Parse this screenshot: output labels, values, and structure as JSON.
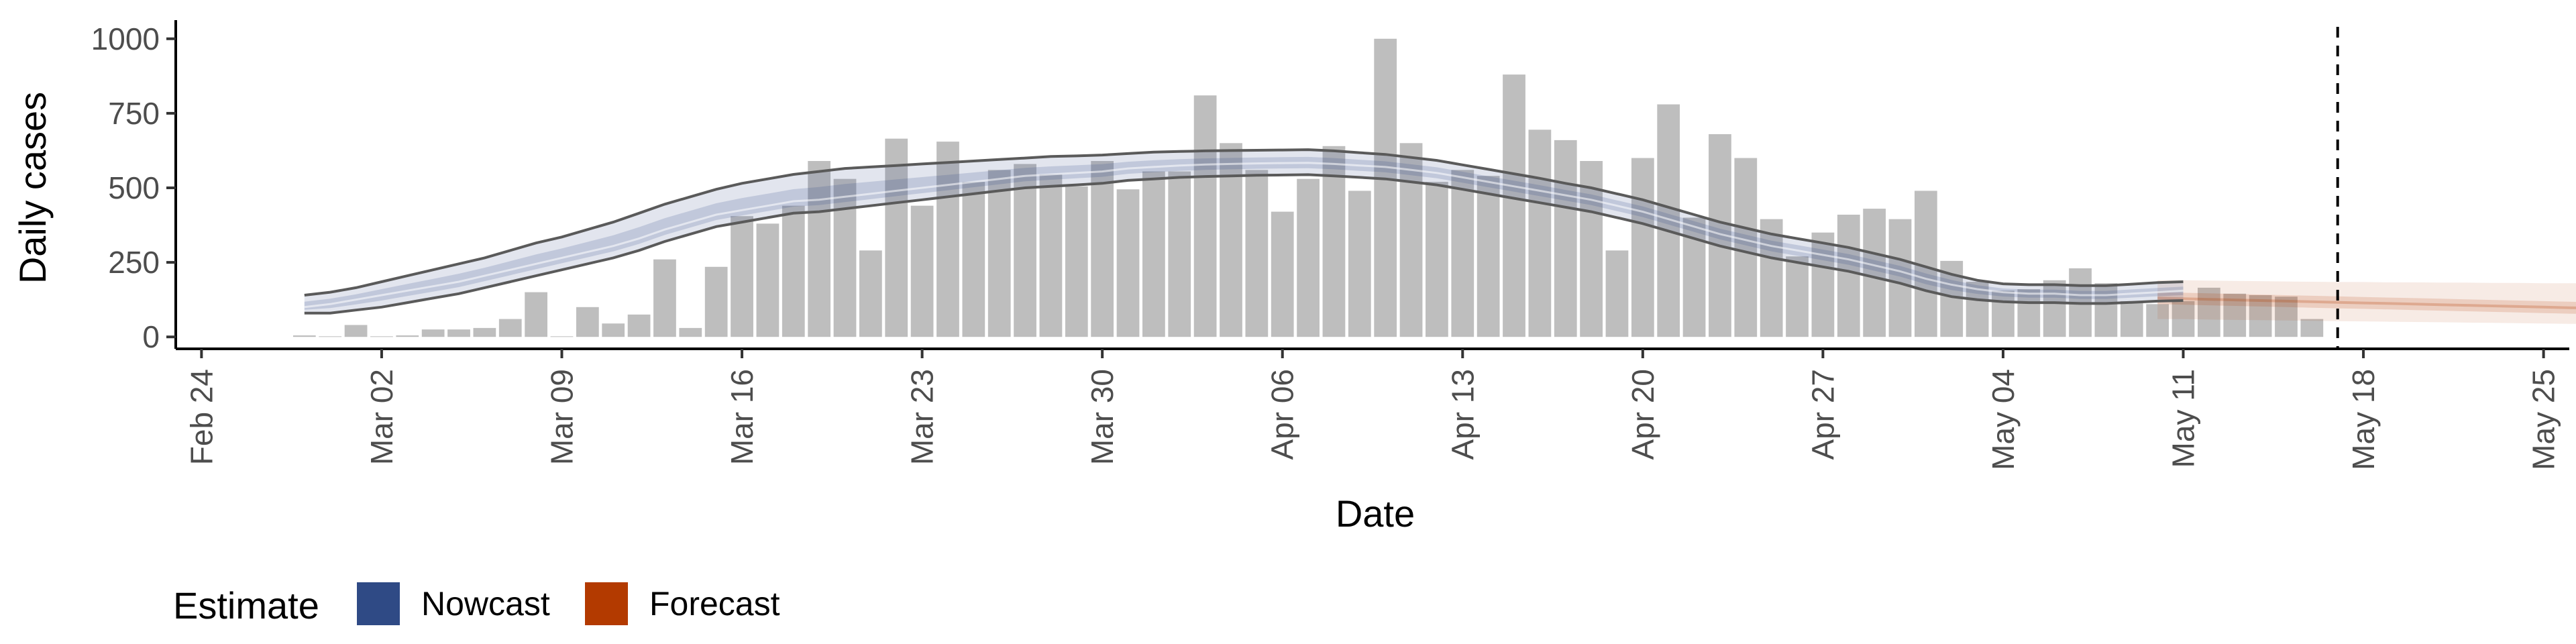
{
  "chart_data": {
    "type": "bar",
    "xlabel": "Date",
    "ylabel": "Daily cases",
    "x_start": "2020-02-24",
    "xlim": [
      "2020-02-23",
      "2020-05-26"
    ],
    "ylim": [
      -40,
      1040
    ],
    "x_ticks": [
      {
        "date": "2020-02-24",
        "label": "Feb 24"
      },
      {
        "date": "2020-03-02",
        "label": "Mar 02"
      },
      {
        "date": "2020-03-09",
        "label": "Mar 09"
      },
      {
        "date": "2020-03-16",
        "label": "Mar 16"
      },
      {
        "date": "2020-03-23",
        "label": "Mar 23"
      },
      {
        "date": "2020-03-30",
        "label": "Mar 30"
      },
      {
        "date": "2020-04-06",
        "label": "Apr 06"
      },
      {
        "date": "2020-04-13",
        "label": "Apr 13"
      },
      {
        "date": "2020-04-20",
        "label": "Apr 20"
      },
      {
        "date": "2020-04-27",
        "label": "Apr 27"
      },
      {
        "date": "2020-05-04",
        "label": "May 04"
      },
      {
        "date": "2020-05-11",
        "label": "May 11"
      },
      {
        "date": "2020-05-18",
        "label": "May 18"
      },
      {
        "date": "2020-05-25",
        "label": "May 25"
      }
    ],
    "y_ticks": [
      {
        "value": 0,
        "label": "0"
      },
      {
        "value": 250,
        "label": "250"
      },
      {
        "value": 500,
        "label": "500"
      },
      {
        "value": 750,
        "label": "750"
      },
      {
        "value": 1000,
        "label": "1000"
      }
    ],
    "bars": {
      "start_date": "2020-02-28",
      "values": [
        5,
        0,
        40,
        0,
        5,
        25,
        25,
        30,
        60,
        150,
        0,
        100,
        45,
        75,
        260,
        30,
        235,
        405,
        380,
        440,
        590,
        530,
        290,
        665,
        440,
        655,
        520,
        560,
        580,
        545,
        505,
        590,
        495,
        555,
        555,
        810,
        650,
        560,
        420,
        530,
        640,
        490,
        1000,
        650,
        520,
        560,
        540,
        880,
        695,
        660,
        590,
        290,
        600,
        780,
        400,
        680,
        600,
        395,
        270,
        350,
        410,
        430,
        395,
        490,
        255,
        185,
        155,
        160,
        190,
        230,
        180,
        120,
        110,
        120,
        165,
        145,
        140,
        135,
        60
      ],
      "color": "#bebebe"
    },
    "nowcast": {
      "name": "Nowcast",
      "color": "#2f4a85",
      "start_date": "2020-02-28",
      "median": [
        100,
        110,
        125,
        140,
        155,
        170,
        185,
        205,
        225,
        245,
        265,
        285,
        305,
        330,
        360,
        385,
        410,
        425,
        440,
        455,
        460,
        470,
        480,
        490,
        500,
        510,
        520,
        530,
        540,
        545,
        550,
        555,
        565,
        570,
        575,
        578,
        580,
        582,
        583,
        584,
        580,
        575,
        570,
        560,
        550,
        535,
        520,
        505,
        490,
        475,
        460,
        440,
        420,
        395,
        370,
        345,
        325,
        305,
        290,
        275,
        260,
        240,
        220,
        195,
        175,
        160,
        150,
        145,
        145,
        140,
        140,
        145,
        150,
        155
      ],
      "lower": [
        80,
        80,
        90,
        100,
        115,
        130,
        145,
        165,
        185,
        205,
        225,
        245,
        265,
        290,
        320,
        345,
        370,
        385,
        400,
        415,
        420,
        430,
        440,
        450,
        460,
        470,
        480,
        490,
        500,
        505,
        510,
        515,
        525,
        530,
        535,
        538,
        540,
        542,
        543,
        544,
        540,
        535,
        530,
        520,
        510,
        495,
        480,
        465,
        450,
        435,
        420,
        400,
        380,
        355,
        330,
        305,
        285,
        265,
        250,
        235,
        220,
        200,
        180,
        155,
        135,
        125,
        118,
        115,
        115,
        112,
        112,
        116,
        120,
        122
      ],
      "upper": [
        140,
        150,
        165,
        185,
        205,
        225,
        245,
        265,
        290,
        315,
        335,
        360,
        385,
        415,
        445,
        470,
        495,
        515,
        530,
        545,
        555,
        565,
        570,
        575,
        580,
        585,
        590,
        595,
        600,
        605,
        607,
        610,
        615,
        620,
        622,
        624,
        625,
        626,
        627,
        628,
        624,
        618,
        612,
        602,
        592,
        577,
        562,
        547,
        532,
        515,
        500,
        480,
        460,
        435,
        410,
        385,
        365,
        345,
        330,
        315,
        300,
        280,
        260,
        235,
        210,
        190,
        178,
        175,
        175,
        172,
        172,
        177,
        182,
        185
      ]
    },
    "forecast": {
      "name": "Forecast",
      "color": "#b33a00",
      "start_date": "2020-05-10",
      "median": [
        130,
        128,
        126,
        124,
        122,
        120,
        118,
        116,
        114,
        112,
        110,
        108,
        106,
        104,
        102,
        100,
        98,
        96,
        94,
        92,
        90,
        88,
        85,
        82,
        80,
        78
      ],
      "outer_lower": [
        60,
        60,
        58,
        57,
        56,
        55,
        54,
        53,
        52,
        51,
        50,
        49,
        48,
        47,
        46,
        45,
        44,
        43,
        42,
        41,
        40,
        39,
        38,
        37,
        36,
        35
      ],
      "outer_upper": [
        190,
        190,
        189,
        188,
        187,
        186,
        185,
        184,
        184,
        183,
        183,
        182,
        182,
        181,
        181,
        180,
        180,
        180,
        179,
        179,
        179,
        178,
        178,
        178,
        178,
        178
      ],
      "inner_lower": [
        110,
        108,
        106,
        104,
        102,
        100,
        98,
        96,
        94,
        92,
        90,
        88,
        86,
        84,
        82,
        80,
        78,
        76,
        74,
        72,
        70,
        68,
        66,
        64,
        62,
        60
      ],
      "inner_upper": [
        150,
        148,
        146,
        144,
        142,
        140,
        138,
        136,
        134,
        132,
        130,
        128,
        126,
        124,
        122,
        120,
        118,
        116,
        114,
        112,
        110,
        108,
        106,
        104,
        102,
        100
      ]
    },
    "vline": {
      "date": "2020-05-17",
      "style": "dashed"
    },
    "legend": {
      "title": "Estimate",
      "placement": "bottom-left",
      "items": [
        {
          "label": "Nowcast",
          "color": "#2f4a85"
        },
        {
          "label": "Forecast",
          "color": "#b33a00"
        }
      ]
    }
  }
}
